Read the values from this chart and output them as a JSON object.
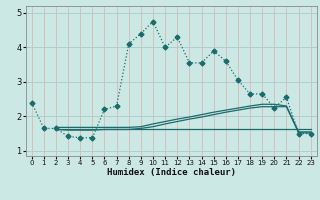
{
  "xlabel": "Humidex (Indice chaleur)",
  "bg_color": "#cce8e4",
  "plot_bg_color": "#cce8e4",
  "grid_color_v": "#d9b8b8",
  "grid_color_h": "#a8ccc8",
  "line_color": "#1a6b6b",
  "xlim": [
    -0.5,
    23.5
  ],
  "ylim": [
    0.85,
    5.2
  ],
  "yticks": [
    1,
    2,
    3,
    4,
    5
  ],
  "xticks": [
    0,
    1,
    2,
    3,
    4,
    5,
    6,
    7,
    8,
    9,
    10,
    11,
    12,
    13,
    14,
    15,
    16,
    17,
    18,
    19,
    20,
    21,
    22,
    23
  ],
  "line1_x": [
    0,
    1,
    2,
    3,
    4,
    5,
    6,
    7,
    8,
    9,
    10,
    11,
    12,
    13,
    14,
    15,
    16,
    17,
    18,
    19,
    20,
    21,
    22,
    23
  ],
  "line1_y": [
    2.4,
    1.65,
    1.65,
    1.42,
    1.38,
    1.38,
    2.2,
    2.3,
    4.1,
    4.4,
    4.75,
    4.0,
    4.3,
    3.55,
    3.55,
    3.9,
    3.6,
    3.05,
    2.65,
    2.65,
    2.25,
    2.55,
    1.5,
    1.5
  ],
  "line2_x": [
    2,
    3,
    4,
    5,
    6,
    7,
    8,
    9,
    10,
    11,
    12,
    13,
    14,
    15,
    16,
    17,
    18,
    19,
    20,
    21,
    22,
    23
  ],
  "line2_y": [
    1.68,
    1.68,
    1.68,
    1.68,
    1.68,
    1.68,
    1.68,
    1.7,
    1.78,
    1.85,
    1.92,
    1.98,
    2.05,
    2.12,
    2.18,
    2.24,
    2.3,
    2.35,
    2.35,
    2.3,
    1.55,
    1.55
  ],
  "line3_x": [
    2,
    3,
    4,
    5,
    6,
    7,
    8,
    9,
    10,
    11,
    12,
    13,
    14,
    15,
    16,
    17,
    18,
    19,
    20,
    21,
    22,
    23
  ],
  "line3_y": [
    1.62,
    1.62,
    1.62,
    1.62,
    1.62,
    1.62,
    1.62,
    1.62,
    1.62,
    1.62,
    1.62,
    1.62,
    1.62,
    1.62,
    1.62,
    1.62,
    1.62,
    1.62,
    1.62,
    1.62,
    1.62,
    1.62
  ],
  "line4_x": [
    2,
    3,
    4,
    5,
    6,
    7,
    8,
    9,
    10,
    11,
    12,
    13,
    14,
    15,
    16,
    17,
    18,
    19,
    20,
    21,
    22,
    23
  ],
  "line4_y": [
    1.62,
    1.6,
    1.6,
    1.6,
    1.62,
    1.62,
    1.62,
    1.65,
    1.7,
    1.78,
    1.85,
    1.92,
    1.98,
    2.05,
    2.12,
    2.18,
    2.24,
    2.28,
    2.28,
    2.28,
    1.52,
    1.52
  ]
}
